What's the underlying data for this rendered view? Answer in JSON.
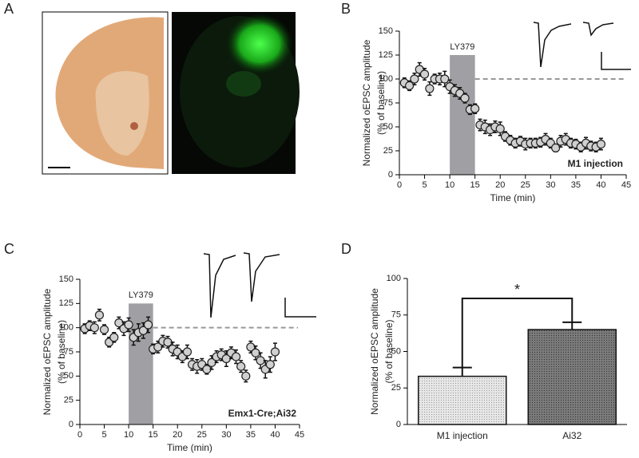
{
  "panel_labels": [
    "A",
    "B",
    "C",
    "D"
  ],
  "chart_data": [
    {
      "type": "scatter",
      "x": [
        1,
        2,
        3,
        4,
        5,
        6,
        7,
        8,
        9,
        10,
        11,
        12,
        13,
        14,
        15,
        16,
        17,
        18,
        19,
        20,
        21,
        22,
        23,
        24,
        25,
        26,
        27,
        28,
        29,
        30,
        31,
        32,
        33,
        34,
        35,
        36,
        37,
        38,
        39,
        40
      ],
      "values": [
        96,
        93,
        100,
        110,
        105,
        90,
        100,
        100,
        100,
        92,
        88,
        85,
        80,
        68,
        69,
        52,
        50,
        47,
        50,
        48,
        40,
        36,
        33,
        35,
        32,
        33,
        33,
        34,
        37,
        33,
        28,
        35,
        37,
        33,
        32,
        29,
        33,
        30,
        29,
        32
      ],
      "errors": [
        5,
        5,
        6,
        7,
        6,
        7,
        5,
        6,
        8,
        7,
        6,
        6,
        5,
        5,
        5,
        6,
        7,
        6,
        6,
        7,
        5,
        5,
        5,
        5,
        6,
        5,
        5,
        5,
        6,
        5,
        4,
        6,
        6,
        5,
        5,
        5,
        6,
        5,
        5,
        6
      ],
      "xlim": [
        0,
        45
      ],
      "ylim": [
        0,
        150
      ],
      "xticks": [
        0,
        5,
        10,
        15,
        20,
        25,
        30,
        35,
        40,
        45
      ],
      "yticks": [
        0,
        25,
        50,
        75,
        100,
        125,
        150
      ],
      "xlabel": "Time (min)",
      "ylabel": [
        "Normalized oEPSC amplitude",
        "(% of baseline)"
      ],
      "shade": {
        "x": [
          10,
          15
        ],
        "top": 125,
        "label": "LY379",
        "color": "#a0a0a4"
      },
      "reference_line": 100,
      "annotation": "M1 injection",
      "marker_color": "#d0d0d0"
    },
    {
      "type": "scatter",
      "x": [
        1,
        2,
        3,
        4,
        5,
        6,
        7,
        8,
        9,
        10,
        11,
        12,
        13,
        14,
        15,
        16,
        17,
        18,
        19,
        20,
        21,
        22,
        23,
        24,
        25,
        26,
        27,
        28,
        29,
        30,
        31,
        32,
        33,
        34,
        35,
        36,
        37,
        38,
        39,
        40
      ],
      "values": [
        99,
        102,
        100,
        113,
        98,
        85,
        90,
        105,
        99,
        103,
        90,
        95,
        97,
        103,
        78,
        80,
        86,
        85,
        78,
        75,
        70,
        75,
        62,
        60,
        62,
        57,
        64,
        70,
        72,
        68,
        74,
        70,
        60,
        50,
        80,
        74,
        66,
        57,
        62,
        75
      ],
      "errors": [
        5,
        5,
        6,
        6,
        5,
        5,
        5,
        6,
        7,
        7,
        8,
        9,
        8,
        8,
        5,
        6,
        6,
        6,
        7,
        7,
        6,
        7,
        6,
        7,
        6,
        5,
        7,
        6,
        6,
        8,
        6,
        7,
        6,
        6,
        6,
        7,
        8,
        9,
        8,
        9
      ],
      "xlim": [
        0,
        45
      ],
      "ylim": [
        0,
        150
      ],
      "xticks": [
        0,
        5,
        10,
        15,
        20,
        25,
        30,
        35,
        40,
        45
      ],
      "yticks": [
        0,
        25,
        50,
        75,
        100,
        125,
        150
      ],
      "xlabel": "Time (min)",
      "ylabel": [
        "Normalized oEPSC amplitude",
        "(% of baseline)"
      ],
      "shade": {
        "x": [
          10,
          15
        ],
        "top": 125,
        "label": "LY379",
        "color": "#a0a0a4"
      },
      "reference_line": 100,
      "annotation": "Emx1-Cre;Ai32",
      "marker_color": "#d0d0d0"
    },
    {
      "type": "bar",
      "categories": [
        "M1 injection",
        "Ai32"
      ],
      "values": [
        33,
        65
      ],
      "errors": [
        6,
        5
      ],
      "colors": [
        "#dcdcdc",
        "#6e6e6e"
      ],
      "ylim": [
        0,
        100
      ],
      "yticks": [
        0,
        25,
        50,
        75,
        100
      ],
      "ylabel": [
        "Normalized oEPSC amplitude",
        "(% of baseline)"
      ],
      "significance": "*"
    }
  ]
}
